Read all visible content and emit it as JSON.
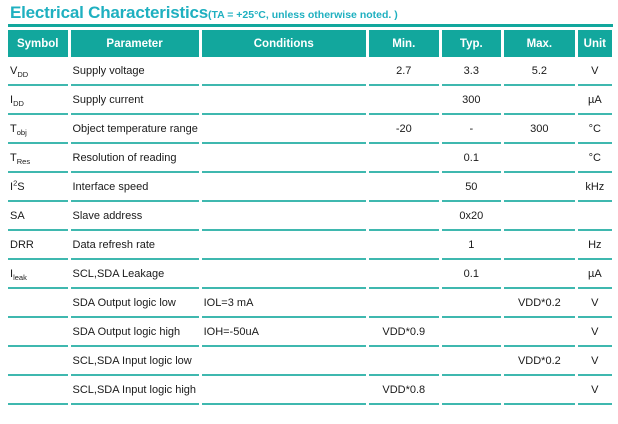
{
  "title": {
    "main": "Electrical Characteristics",
    "note": "(TA = +25°C, unless otherwise noted. )"
  },
  "colors": {
    "accent_teal": "#12A79D",
    "title_teal": "#1FB0C0",
    "row_line_teal": "#3FB8AF",
    "header_text": "#FFFFFF",
    "body_text": "#1A1A1A"
  },
  "table": {
    "headers": [
      "Symbol",
      "Parameter",
      "Conditions",
      "Min.",
      "Typ.",
      "Max.",
      "Unit"
    ],
    "rows": [
      {
        "symbol": {
          "main": "V",
          "sub": "DD"
        },
        "parameter": "Supply voltage",
        "conditions": "",
        "min": "2.7",
        "typ": "3.3",
        "max": "5.2",
        "unit": "V"
      },
      {
        "symbol": {
          "main": "I",
          "sub": "DD"
        },
        "parameter": "Supply current",
        "conditions": "",
        "min": "",
        "typ": "300",
        "max": "",
        "unit": "µA"
      },
      {
        "symbol": {
          "main": "T",
          "sub": "obj"
        },
        "parameter": "Object temperature range",
        "conditions": "",
        "min": "-20",
        "typ": "-",
        "max": "300",
        "unit": "°C"
      },
      {
        "symbol": {
          "main": "T",
          "sub": "Res"
        },
        "parameter": "Resolution of reading",
        "conditions": "",
        "min": "",
        "typ": "0.1",
        "max": "",
        "unit": "°C"
      },
      {
        "symbol": {
          "main": "I",
          "sup": "2",
          "tail": "S"
        },
        "parameter": "Interface speed",
        "conditions": "",
        "min": "",
        "typ": "50",
        "max": "",
        "unit": "kHz"
      },
      {
        "symbol": {
          "main": "SA"
        },
        "parameter": "Slave address",
        "conditions": "",
        "min": "",
        "typ": "0x20",
        "max": "",
        "unit": ""
      },
      {
        "symbol": {
          "main": "DRR"
        },
        "parameter": "Data refresh rate",
        "conditions": "",
        "min": "",
        "typ": "1",
        "max": "",
        "unit": "Hz"
      },
      {
        "symbol": {
          "main": "I",
          "sub": "leak"
        },
        "parameter": "SCL,SDA Leakage",
        "conditions": "",
        "min": "",
        "typ": "0.1",
        "max": "",
        "unit": "µA"
      },
      {
        "symbol": {
          "main": ""
        },
        "parameter": "SDA Output logic low",
        "conditions": "IOL=3 mA",
        "min": "",
        "typ": "",
        "max": "VDD*0.2",
        "unit": "V"
      },
      {
        "symbol": {
          "main": ""
        },
        "parameter": "SDA Output logic high",
        "conditions": "IOH=-50uA",
        "min": "VDD*0.9",
        "typ": "",
        "max": "",
        "unit": "V"
      },
      {
        "symbol": {
          "main": ""
        },
        "parameter": "SCL,SDA Input logic low",
        "conditions": "",
        "min": "",
        "typ": "",
        "max": "VDD*0.2",
        "unit": "V"
      },
      {
        "symbol": {
          "main": ""
        },
        "parameter": "SCL,SDA Input logic high",
        "conditions": "",
        "min": "VDD*0.8",
        "typ": "",
        "max": "",
        "unit": "V"
      }
    ]
  }
}
